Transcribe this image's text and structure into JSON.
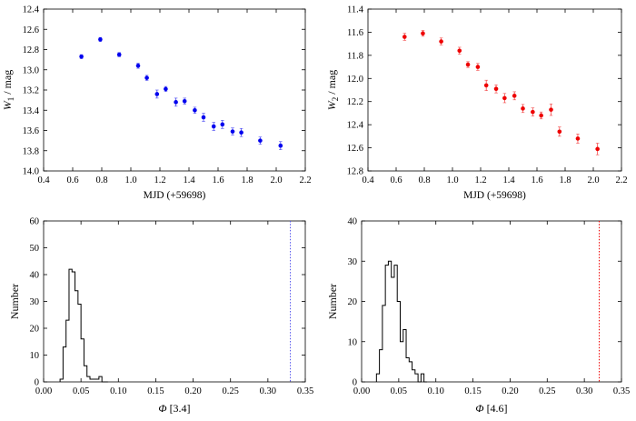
{
  "chart_data": [
    {
      "type": "scatter",
      "xlabel": "MJD (+59698)",
      "ylabel": "W1 / mag",
      "ylabel_main": "W",
      "ylabel_sub": "1",
      "ylabel_tail": " / mag",
      "xlim": [
        0.4,
        2.2
      ],
      "ylim": [
        12.4,
        14.0
      ],
      "y_inverted": true,
      "xticks": [
        0.4,
        0.6,
        0.8,
        1.0,
        1.2,
        1.4,
        1.6,
        1.8,
        2.0,
        2.2
      ],
      "xtick_labels": [
        "0.4",
        "0.6",
        "0.8",
        "1.0",
        "1.2",
        "1.4",
        "1.6",
        "1.8",
        "2.0",
        "2.2"
      ],
      "yticks": [
        12.4,
        12.6,
        12.8,
        13.0,
        13.2,
        13.4,
        13.6,
        13.8,
        14.0
      ],
      "ytick_labels": [
        "12.4",
        "12.6",
        "12.8",
        "13.0",
        "13.2",
        "13.4",
        "13.6",
        "13.8",
        "14.0"
      ],
      "color": "#0000ee",
      "points": [
        {
          "x": 0.66,
          "y": 12.87,
          "err": 0.02
        },
        {
          "x": 0.79,
          "y": 12.7,
          "err": 0.02
        },
        {
          "x": 0.92,
          "y": 12.85,
          "err": 0.02
        },
        {
          "x": 1.05,
          "y": 12.96,
          "err": 0.025
        },
        {
          "x": 1.11,
          "y": 13.08,
          "err": 0.025
        },
        {
          "x": 1.18,
          "y": 13.24,
          "err": 0.04
        },
        {
          "x": 1.24,
          "y": 13.19,
          "err": 0.025
        },
        {
          "x": 1.31,
          "y": 13.32,
          "err": 0.04
        },
        {
          "x": 1.37,
          "y": 13.31,
          "err": 0.03
        },
        {
          "x": 1.44,
          "y": 13.4,
          "err": 0.03
        },
        {
          "x": 1.5,
          "y": 13.47,
          "err": 0.04
        },
        {
          "x": 1.57,
          "y": 13.56,
          "err": 0.04
        },
        {
          "x": 1.63,
          "y": 13.54,
          "err": 0.04
        },
        {
          "x": 1.7,
          "y": 13.61,
          "err": 0.035
        },
        {
          "x": 1.76,
          "y": 13.62,
          "err": 0.04
        },
        {
          "x": 1.89,
          "y": 13.7,
          "err": 0.035
        },
        {
          "x": 2.03,
          "y": 13.75,
          "err": 0.04
        }
      ]
    },
    {
      "type": "scatter",
      "xlabel": "MJD (+59698)",
      "ylabel": "W2 / mag",
      "ylabel_main": "W",
      "ylabel_sub": "2",
      "ylabel_tail": " / mag",
      "xlim": [
        0.4,
        2.2
      ],
      "ylim": [
        11.4,
        12.8
      ],
      "y_inverted": true,
      "xticks": [
        0.4,
        0.6,
        0.8,
        1.0,
        1.2,
        1.4,
        1.6,
        1.8,
        2.0,
        2.2
      ],
      "xtick_labels": [
        "0.4",
        "0.6",
        "0.8",
        "1.0",
        "1.2",
        "1.4",
        "1.6",
        "1.8",
        "2.0",
        "2.2"
      ],
      "yticks": [
        11.4,
        11.6,
        11.8,
        12.0,
        12.2,
        12.4,
        12.6,
        12.8
      ],
      "ytick_labels": [
        "11.4",
        "11.6",
        "11.8",
        "12.0",
        "12.2",
        "12.4",
        "12.6",
        "12.8"
      ],
      "color": "#ee0000",
      "points": [
        {
          "x": 0.66,
          "y": 11.64,
          "err": 0.03
        },
        {
          "x": 0.79,
          "y": 11.61,
          "err": 0.025
        },
        {
          "x": 0.92,
          "y": 11.68,
          "err": 0.03
        },
        {
          "x": 1.05,
          "y": 11.76,
          "err": 0.03
        },
        {
          "x": 1.11,
          "y": 11.88,
          "err": 0.025
        },
        {
          "x": 1.18,
          "y": 11.9,
          "err": 0.03
        },
        {
          "x": 1.24,
          "y": 12.06,
          "err": 0.045
        },
        {
          "x": 1.31,
          "y": 12.09,
          "err": 0.035
        },
        {
          "x": 1.37,
          "y": 12.17,
          "err": 0.04
        },
        {
          "x": 1.44,
          "y": 12.15,
          "err": 0.035
        },
        {
          "x": 1.5,
          "y": 12.26,
          "err": 0.035
        },
        {
          "x": 1.57,
          "y": 12.29,
          "err": 0.035
        },
        {
          "x": 1.63,
          "y": 12.32,
          "err": 0.03
        },
        {
          "x": 1.7,
          "y": 12.27,
          "err": 0.05
        },
        {
          "x": 1.76,
          "y": 12.46,
          "err": 0.04
        },
        {
          "x": 1.89,
          "y": 12.52,
          "err": 0.04
        },
        {
          "x": 2.03,
          "y": 12.61,
          "err": 0.05
        }
      ]
    },
    {
      "type": "histogram",
      "xlabel": "Φ [3.4]",
      "xlabel_symbol": "Φ",
      "xlabel_tail": " [3.4]",
      "ylabel": "Number",
      "xlim": [
        0.0,
        0.35
      ],
      "ylim": [
        0,
        60
      ],
      "xticks": [
        0.0,
        0.05,
        0.1,
        0.15,
        0.2,
        0.25,
        0.3,
        0.35
      ],
      "xtick_labels": [
        "0.00",
        "0.05",
        "0.10",
        "0.15",
        "0.20",
        "0.25",
        "0.30",
        "0.35"
      ],
      "yticks": [
        0,
        10,
        20,
        30,
        40,
        50,
        60
      ],
      "ytick_labels": [
        "0",
        "10",
        "20",
        "30",
        "40",
        "50",
        "60"
      ],
      "bin_start": 0.022,
      "bin_width": 0.004,
      "counts": [
        1,
        13,
        23,
        42,
        41,
        34,
        29,
        16,
        6,
        2,
        1,
        1,
        1,
        2,
        0,
        0
      ],
      "marker_x": 0.33,
      "marker_color": "#5555ee"
    },
    {
      "type": "histogram",
      "xlabel": "Φ [4.6]",
      "xlabel_symbol": "Φ",
      "xlabel_tail": " [4.6]",
      "ylabel": "Number",
      "xlim": [
        0.0,
        0.35
      ],
      "ylim": [
        0,
        40
      ],
      "xticks": [
        0.0,
        0.05,
        0.1,
        0.15,
        0.2,
        0.25,
        0.3,
        0.35
      ],
      "xtick_labels": [
        "0.00",
        "0.05",
        "0.10",
        "0.15",
        "0.20",
        "0.25",
        "0.30",
        "0.35"
      ],
      "yticks": [
        0,
        10,
        20,
        30,
        40
      ],
      "ytick_labels": [
        "0",
        "10",
        "20",
        "30",
        "40"
      ],
      "bin_start": 0.02,
      "bin_width": 0.004,
      "counts": [
        2,
        8,
        19,
        29,
        30,
        26,
        29,
        20,
        10,
        13,
        6,
        5,
        3,
        2,
        0,
        2,
        0
      ],
      "marker_x": 0.32,
      "marker_color": "#ee0000"
    }
  ]
}
